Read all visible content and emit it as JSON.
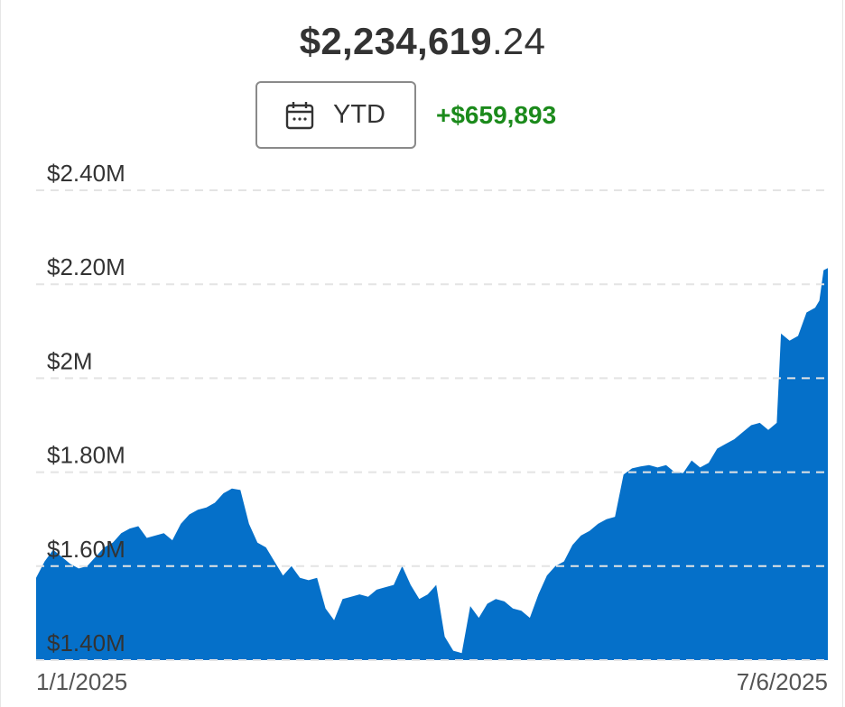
{
  "portfolio": {
    "value_main": "$2,234,619",
    "value_cents": ".24",
    "range_label": "YTD",
    "range_icon": "calendar-icon",
    "change": "+$659,893",
    "change_color": "#1b8a1b"
  },
  "chart_data": {
    "type": "area",
    "color": "#0570c9",
    "grid": true,
    "ylim": [
      1400000,
      2400000
    ],
    "y_ticks": [
      {
        "value": 2400000,
        "label": "$2.40M"
      },
      {
        "value": 2200000,
        "label": "$2.20M"
      },
      {
        "value": 2000000,
        "label": "$2M"
      },
      {
        "value": 1800000,
        "label": "$1.80M"
      },
      {
        "value": 1600000,
        "label": "$1.60M"
      },
      {
        "value": 1400000,
        "label": "$1.40M"
      }
    ],
    "x_labels": [
      "1/1/2025",
      "7/6/2025"
    ],
    "x_range": [
      "2025-01-01",
      "2025-07-06"
    ],
    "series": [
      {
        "points": [
          [
            "2025-01-01",
            1575000
          ],
          [
            "2025-01-03",
            1610000
          ],
          [
            "2025-01-05",
            1635000
          ],
          [
            "2025-01-07",
            1620000
          ],
          [
            "2025-01-09",
            1605000
          ],
          [
            "2025-01-11",
            1595000
          ],
          [
            "2025-01-13",
            1600000
          ],
          [
            "2025-01-15",
            1620000
          ],
          [
            "2025-01-17",
            1640000
          ],
          [
            "2025-01-19",
            1650000
          ],
          [
            "2025-01-21",
            1670000
          ],
          [
            "2025-01-23",
            1680000
          ],
          [
            "2025-01-25",
            1685000
          ],
          [
            "2025-01-27",
            1660000
          ],
          [
            "2025-01-29",
            1665000
          ],
          [
            "2025-01-31",
            1670000
          ],
          [
            "2025-02-02",
            1655000
          ],
          [
            "2025-02-04",
            1690000
          ],
          [
            "2025-02-06",
            1710000
          ],
          [
            "2025-02-08",
            1720000
          ],
          [
            "2025-02-10",
            1725000
          ],
          [
            "2025-02-12",
            1735000
          ],
          [
            "2025-02-14",
            1755000
          ],
          [
            "2025-02-16",
            1765000
          ],
          [
            "2025-02-18",
            1762000
          ],
          [
            "2025-02-20",
            1690000
          ],
          [
            "2025-02-22",
            1650000
          ],
          [
            "2025-02-24",
            1640000
          ],
          [
            "2025-02-26",
            1610000
          ],
          [
            "2025-02-28",
            1580000
          ],
          [
            "2025-03-02",
            1600000
          ],
          [
            "2025-03-04",
            1575000
          ],
          [
            "2025-03-06",
            1570000
          ],
          [
            "2025-03-08",
            1575000
          ],
          [
            "2025-03-10",
            1510000
          ],
          [
            "2025-03-12",
            1485000
          ],
          [
            "2025-03-14",
            1530000
          ],
          [
            "2025-03-16",
            1535000
          ],
          [
            "2025-03-18",
            1540000
          ],
          [
            "2025-03-20",
            1535000
          ],
          [
            "2025-03-22",
            1550000
          ],
          [
            "2025-03-24",
            1555000
          ],
          [
            "2025-03-26",
            1560000
          ],
          [
            "2025-03-28",
            1600000
          ],
          [
            "2025-03-30",
            1560000
          ],
          [
            "2025-04-01",
            1530000
          ],
          [
            "2025-04-03",
            1540000
          ],
          [
            "2025-04-05",
            1560000
          ],
          [
            "2025-04-07",
            1450000
          ],
          [
            "2025-04-09",
            1420000
          ],
          [
            "2025-04-11",
            1415000
          ],
          [
            "2025-04-13",
            1515000
          ],
          [
            "2025-04-15",
            1490000
          ],
          [
            "2025-04-17",
            1520000
          ],
          [
            "2025-04-19",
            1530000
          ],
          [
            "2025-04-21",
            1525000
          ],
          [
            "2025-04-23",
            1510000
          ],
          [
            "2025-04-25",
            1505000
          ],
          [
            "2025-04-27",
            1490000
          ],
          [
            "2025-04-29",
            1540000
          ],
          [
            "2025-05-01",
            1580000
          ],
          [
            "2025-05-03",
            1600000
          ],
          [
            "2025-05-05",
            1610000
          ],
          [
            "2025-05-07",
            1645000
          ],
          [
            "2025-05-09",
            1665000
          ],
          [
            "2025-05-11",
            1675000
          ],
          [
            "2025-05-13",
            1690000
          ],
          [
            "2025-05-15",
            1700000
          ],
          [
            "2025-05-17",
            1705000
          ],
          [
            "2025-05-19",
            1795000
          ],
          [
            "2025-05-21",
            1808000
          ],
          [
            "2025-05-23",
            1812000
          ],
          [
            "2025-05-25",
            1815000
          ],
          [
            "2025-05-27",
            1810000
          ],
          [
            "2025-05-29",
            1815000
          ],
          [
            "2025-05-31",
            1800000
          ],
          [
            "2025-06-02",
            1798000
          ],
          [
            "2025-06-04",
            1825000
          ],
          [
            "2025-06-06",
            1810000
          ],
          [
            "2025-06-08",
            1820000
          ],
          [
            "2025-06-10",
            1850000
          ],
          [
            "2025-06-12",
            1860000
          ],
          [
            "2025-06-14",
            1870000
          ],
          [
            "2025-06-16",
            1885000
          ],
          [
            "2025-06-18",
            1900000
          ],
          [
            "2025-06-20",
            1905000
          ],
          [
            "2025-06-22",
            1890000
          ],
          [
            "2025-06-24",
            1905000
          ],
          [
            "2025-06-25",
            2095000
          ],
          [
            "2025-06-27",
            2080000
          ],
          [
            "2025-06-29",
            2090000
          ],
          [
            "2025-07-01",
            2140000
          ],
          [
            "2025-07-03",
            2150000
          ],
          [
            "2025-07-04",
            2165000
          ],
          [
            "2025-07-05",
            2230000
          ],
          [
            "2025-07-06",
            2234619
          ]
        ]
      }
    ]
  }
}
